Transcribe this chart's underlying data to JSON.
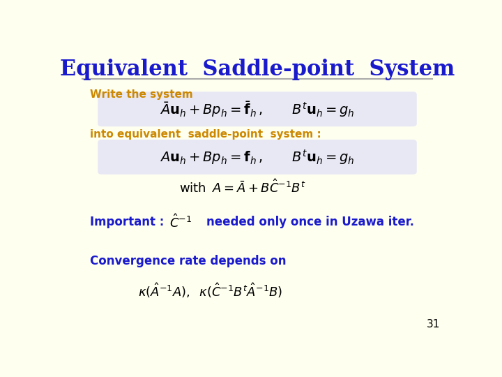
{
  "title": "Equivalent  Saddle-point  System",
  "title_color": "#1a1acd",
  "title_fontsize": 22,
  "background_color": "#fffff0",
  "orange_color": "#cc8800",
  "blue_color": "#1a1acd",
  "black_color": "#000000",
  "text1": "Write the system",
  "eq1": "$\\bar{A}\\mathbf{u}_h + Bp_h = \\bar{\\mathbf{f}}_h\\,,\\qquad B^t\\mathbf{u}_h = g_h$",
  "text2": "into equivalent  saddle-point  system :",
  "eq2": "$A\\mathbf{u}_h + Bp_h = \\mathbf{f}_h\\,,\\qquad B^t\\mathbf{u}_h = g_h$",
  "eq3": "$\\mathrm{with}\\;\\; A = \\bar{A} + B\\hat{C}^{-1}B^t$",
  "text3": "Important : ",
  "eq_important": "$\\hat{C}^{-1}$",
  "text_important_rest": "needed only once in Uzawa iter.",
  "text4": "Convergence rate depends on",
  "eq4": "$\\kappa(\\hat{A}^{-1}A),\\;\\; \\kappa(\\hat{C}^{-1}B^t\\hat{A}^{-1}B)$",
  "page_number": "31",
  "eq1_box_color": "#e8e8f5",
  "eq2_box_color": "#e8e8f5"
}
